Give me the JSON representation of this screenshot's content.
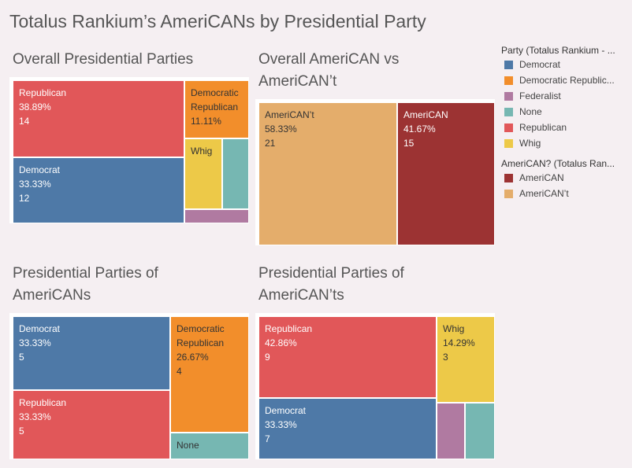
{
  "header": {
    "title": "Totalus Rankium’s AmeriCANs by Presidential Party"
  },
  "colors": {
    "Democrat": "#4e79a7",
    "Democratic Republican": "#f28e2b",
    "Federalist": "#b07aa1",
    "None": "#76b7b2",
    "Republican": "#e15759",
    "Whig": "#edc948",
    "AmeriCAN": "#9c3333",
    "AmeriCAN’t": "#e4ad6b"
  },
  "legend": {
    "party_title": "Party (Totalus Rankium - ...",
    "party_items": [
      "Democrat",
      "Democratic Republic...",
      "Federalist",
      "None",
      "Republican",
      "Whig"
    ],
    "party_keys": [
      "Democrat",
      "Democratic Republican",
      "Federalist",
      "None",
      "Republican",
      "Whig"
    ],
    "americ_title": "AmeriCAN? (Totalus Ran...",
    "americ_items": [
      "AmeriCAN",
      "AmeriCAN’t"
    ],
    "americ_keys": [
      "AmeriCAN",
      "AmeriCAN’t"
    ]
  },
  "chart_data": [
    {
      "type": "treemap",
      "title": "Overall Presidential Parties",
      "tiles": [
        {
          "key": "Republican",
          "lines": [
            "Republican",
            "38.89%",
            "14"
          ],
          "percent": 38.89,
          "count": 14
        },
        {
          "key": "Democrat",
          "lines": [
            "Democrat",
            "33.33%",
            "12"
          ],
          "percent": 33.33,
          "count": 12
        },
        {
          "key": "Democratic Republican",
          "lines": [
            "Democratic",
            "Republican",
            "11.11%"
          ],
          "percent": 11.11,
          "count": 4
        },
        {
          "key": "Whig",
          "lines": [
            "Whig"
          ],
          "percent": 8.33,
          "count": 3
        },
        {
          "key": "None",
          "lines": [],
          "percent": 5.56,
          "count": 2
        },
        {
          "key": "Federalist",
          "lines": [],
          "percent": 2.78,
          "count": 1
        }
      ]
    },
    {
      "type": "treemap",
      "title": "Overall AmeriCAN vs AmeriCAN’t",
      "tiles": [
        {
          "key": "AmeriCAN’t",
          "lines": [
            "AmeriCAN’t",
            "58.33%",
            "21"
          ],
          "percent": 58.33,
          "count": 21
        },
        {
          "key": "AmeriCAN",
          "lines": [
            "AmeriCAN",
            "41.67%",
            "15"
          ],
          "percent": 41.67,
          "count": 15
        }
      ]
    },
    {
      "type": "treemap",
      "title": "Presidential Parties of AmeriCANs",
      "tiles": [
        {
          "key": "Democrat",
          "lines": [
            "Democrat",
            "33.33%",
            "5"
          ],
          "percent": 33.33,
          "count": 5
        },
        {
          "key": "Republican",
          "lines": [
            "Republican",
            "33.33%",
            "5"
          ],
          "percent": 33.33,
          "count": 5
        },
        {
          "key": "Democratic Republican",
          "lines": [
            "Democratic",
            "Republican",
            "26.67%",
            "4"
          ],
          "percent": 26.67,
          "count": 4
        },
        {
          "key": "None",
          "lines": [
            "None"
          ],
          "percent": 6.67,
          "count": 1
        }
      ]
    },
    {
      "type": "treemap",
      "title": "Presidential Parties of AmeriCAN’ts",
      "tiles": [
        {
          "key": "Republican",
          "lines": [
            "Republican",
            "42.86%",
            "9"
          ],
          "percent": 42.86,
          "count": 9
        },
        {
          "key": "Democrat",
          "lines": [
            "Democrat",
            "33.33%",
            "7"
          ],
          "percent": 33.33,
          "count": 7
        },
        {
          "key": "Whig",
          "lines": [
            "Whig",
            "14.29%",
            "3"
          ],
          "percent": 14.29,
          "count": 3
        },
        {
          "key": "Federalist",
          "lines": [],
          "percent": 4.76,
          "count": 1
        },
        {
          "key": "None",
          "lines": [],
          "percent": 4.76,
          "count": 1
        }
      ]
    }
  ]
}
